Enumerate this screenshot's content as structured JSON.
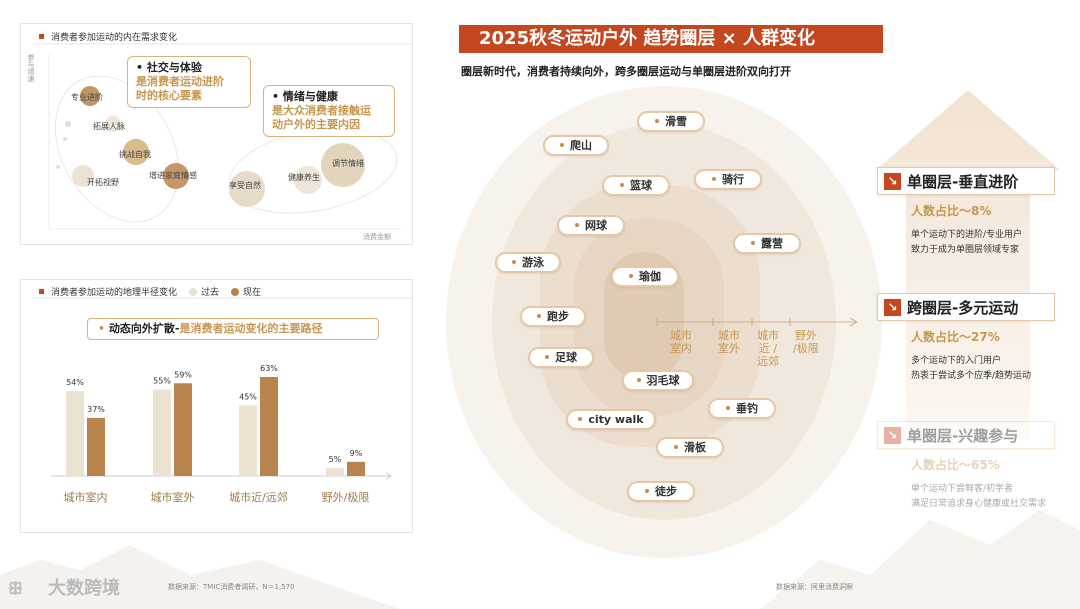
{
  "left_top": {
    "title": "消费者参加运动的内在需求变化",
    "y_axis": "参与增速",
    "x_axis": "消费金额",
    "bubbles": [
      "专业进阶",
      "拓展人脉",
      "挑战自我",
      "开拓视野",
      "增进家庭情感",
      "享受自然",
      "健康养生",
      "调节情绪"
    ],
    "callout1": {
      "title": "社交与体验",
      "sub1": "是消费者运动进阶",
      "sub2": "时的核心要素"
    },
    "callout2": {
      "title": "情绪与健康",
      "sub1": "是大众消费者接触运",
      "sub2": "动户外的主要内因"
    }
  },
  "left_bottom": {
    "title": "消费者参加运动的地理半径变化",
    "legend_past": "过去",
    "legend_now": "现在",
    "banner_head": "动态向外扩散-",
    "banner_body": "是消费者运动变化的主要路径"
  },
  "chart_data": {
    "type": "bar",
    "categories": [
      "城市室内",
      "城市室外",
      "城市近/远郊",
      "野外/极限"
    ],
    "series": [
      {
        "name": "过去",
        "values": [
          54,
          55,
          45,
          5
        ]
      },
      {
        "name": "现在",
        "values": [
          37,
          59,
          63,
          9
        ]
      }
    ],
    "value_suffix": "%",
    "colors": {
      "past": "#ebe2d2",
      "now": "#b8834d"
    }
  },
  "right": {
    "title": "2025秋冬运动户外 趋势圈层 × 人群变化",
    "subtitle": "圈层新时代，消费者持续向外，跨多圈层运动与单圈层进阶双向打开",
    "sports": [
      "滑雪",
      "爬山",
      "篮球",
      "骑行",
      "网球",
      "露营",
      "游泳",
      "瑜伽",
      "跑步",
      "足球",
      "羽毛球",
      "垂钓",
      "city walk",
      "滑板",
      "徒步"
    ],
    "zones": [
      {
        "l1": "城市",
        "l2": "室内"
      },
      {
        "l1": "城市",
        "l2": "室外"
      },
      {
        "l1": "城市",
        "l2": "近 /",
        "l3": "远郊"
      },
      {
        "l1": "野外",
        "l2": "/极限"
      }
    ],
    "tiers": [
      {
        "arrow": "↘",
        "title": "单圈层-垂直进阶",
        "pct": "人数占比～8%",
        "d1": "单个运动下的进阶/专业用户",
        "d2": "致力于成为单圈层领域专家"
      },
      {
        "arrow": "↘",
        "title": "跨圈层-多元运动",
        "pct": "人数占比～27%",
        "d1": "多个运动下的入门用户",
        "d2": "热衷于尝试多个应季/趋势运动"
      },
      {
        "arrow": "↘",
        "title": "单圈层-兴趣参与",
        "pct": "人数占比～65%",
        "d1": "单个运动下尝鲜客/初学者",
        "d2": "满足日常追求身心健康或社交需求"
      }
    ]
  },
  "sources": {
    "left": "数据来源：TMIC消费者调研，N＝1,570",
    "right": "数据来源：阿里消费洞察"
  },
  "brand": "大数跨境",
  "colors": {
    "accent": "#c4471f",
    "gold": "#c8964e"
  }
}
